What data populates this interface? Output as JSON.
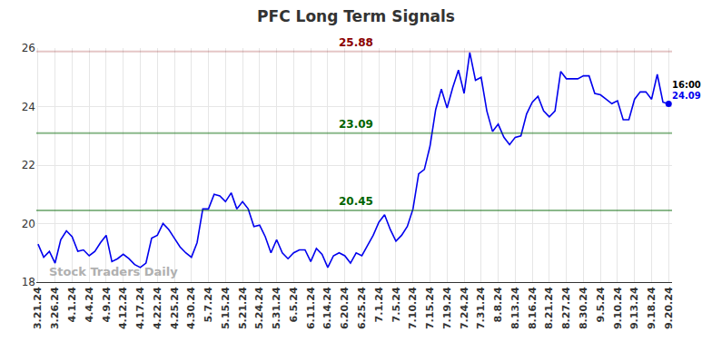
{
  "chart_data": {
    "type": "line",
    "title": "PFC Long Term Signals",
    "categories": [
      "3.21.24",
      null,
      null,
      "3.26.24",
      null,
      null,
      "4.1.24",
      null,
      null,
      "4.4.24",
      null,
      null,
      "4.9.24",
      null,
      null,
      "4.12.24",
      null,
      null,
      "4.17.24",
      null,
      null,
      "4.22.24",
      null,
      null,
      "4.25.24",
      null,
      null,
      "4.30.24",
      null,
      null,
      "5.7.24",
      null,
      null,
      "5.15.24",
      null,
      null,
      "5.21.24",
      null,
      null,
      "5.24.24",
      null,
      null,
      "5.31.24",
      null,
      null,
      "6.5.24",
      null,
      null,
      "6.11.24",
      null,
      null,
      "6.14.24",
      null,
      null,
      "6.20.24",
      null,
      null,
      "6.25.24",
      null,
      null,
      "7.1.24",
      null,
      null,
      "7.5.24",
      null,
      null,
      "7.10.24",
      null,
      null,
      "7.15.24",
      null,
      null,
      "7.19.24",
      null,
      null,
      "7.24.24",
      null,
      null,
      "7.31.24",
      null,
      null,
      "8.8.24",
      null,
      null,
      "8.13.24",
      null,
      null,
      "8.16.24",
      null,
      null,
      "8.21.24",
      null,
      null,
      "8.27.24",
      null,
      null,
      "8.30.24",
      null,
      null,
      "9.5.24",
      null,
      null,
      "9.10.24",
      null,
      null,
      "9.13.24",
      null,
      null,
      "9.18.24",
      null,
      null,
      "9.20.24"
    ],
    "values": [
      19.3,
      18.85,
      19.05,
      18.65,
      19.45,
      19.75,
      19.55,
      19.05,
      19.1,
      18.9,
      19.05,
      19.35,
      19.6,
      18.7,
      18.8,
      18.95,
      18.8,
      18.6,
      18.5,
      18.65,
      19.5,
      19.6,
      20.0,
      19.8,
      19.5,
      19.2,
      19.0,
      18.85,
      19.35,
      20.5,
      20.5,
      21.0,
      20.95,
      20.75,
      21.05,
      20.5,
      20.75,
      20.5,
      19.9,
      19.95,
      19.55,
      19.0,
      19.45,
      19.0,
      18.8,
      19.0,
      19.1,
      19.1,
      18.7,
      19.15,
      18.95,
      18.5,
      18.9,
      19.0,
      18.9,
      18.65,
      19.0,
      18.9,
      19.25,
      19.6,
      20.05,
      20.3,
      19.8,
      19.4,
      19.6,
      19.9,
      20.5,
      21.7,
      21.85,
      22.65,
      23.9,
      24.6,
      23.95,
      24.65,
      25.25,
      24.45,
      25.85,
      24.9,
      25.0,
      23.85,
      23.15,
      23.4,
      22.95,
      22.7,
      22.95,
      23.0,
      23.75,
      24.15,
      24.35,
      23.85,
      23.65,
      23.85,
      25.2,
      24.95,
      24.95,
      24.95,
      25.05,
      25.05,
      24.45,
      24.4,
      24.25,
      24.1,
      24.2,
      23.55,
      23.55,
      24.25,
      24.5,
      24.5,
      24.25,
      25.1,
      24.15,
      24.09
    ],
    "color": "#0000ee",
    "ylim": [
      18,
      26
    ],
    "yticks": [
      18,
      20,
      22,
      24,
      26
    ],
    "grid": true,
    "levels": [
      {
        "value": 25.88,
        "color": "#8b0000"
      },
      {
        "value": 23.09,
        "color": "#006400"
      },
      {
        "value": 20.45,
        "color": "#006400"
      }
    ],
    "annotations": [
      {
        "text": "16:00",
        "x": 111,
        "y": 24.09
      },
      {
        "text": "24.09",
        "x": 111,
        "y": 24.09
      },
      {
        "text": "Stock Traders Daily",
        "x": 0,
        "y": 18
      }
    ]
  }
}
